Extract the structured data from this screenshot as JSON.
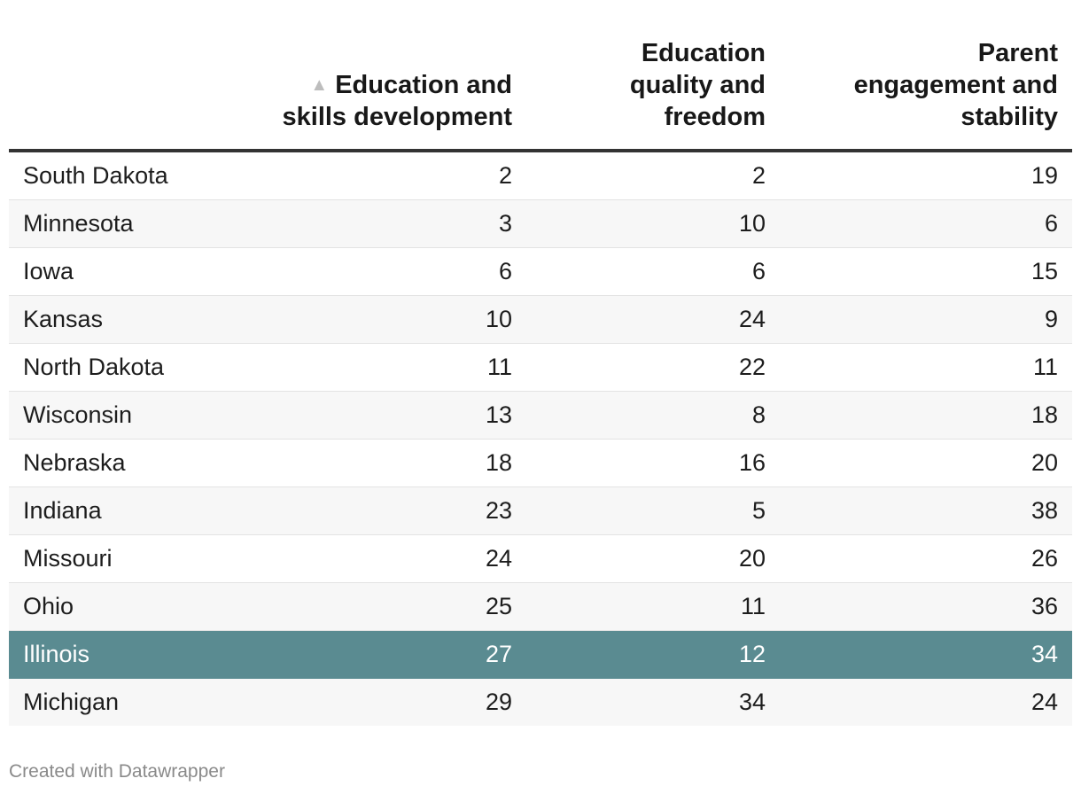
{
  "chart_data": {
    "type": "table",
    "sort": {
      "column": "education_skills",
      "direction": "ascending",
      "icon": "sort-ascending-icon"
    },
    "columns": [
      {
        "key": "state",
        "label": ""
      },
      {
        "key": "education_skills",
        "label_lines": [
          "Education and",
          "skills development"
        ]
      },
      {
        "key": "education_quality",
        "label_lines": [
          "Education",
          "quality and",
          "freedom"
        ]
      },
      {
        "key": "parent_engagement",
        "label_lines": [
          "Parent",
          "engagement and",
          "stability"
        ]
      }
    ],
    "rows": [
      {
        "state": "South Dakota",
        "education_skills": 2,
        "education_quality": 2,
        "parent_engagement": 19
      },
      {
        "state": "Minnesota",
        "education_skills": 3,
        "education_quality": 10,
        "parent_engagement": 6
      },
      {
        "state": "Iowa",
        "education_skills": 6,
        "education_quality": 6,
        "parent_engagement": 15
      },
      {
        "state": "Kansas",
        "education_skills": 10,
        "education_quality": 24,
        "parent_engagement": 9
      },
      {
        "state": "North Dakota",
        "education_skills": 11,
        "education_quality": 22,
        "parent_engagement": 11
      },
      {
        "state": "Wisconsin",
        "education_skills": 13,
        "education_quality": 8,
        "parent_engagement": 18
      },
      {
        "state": "Nebraska",
        "education_skills": 18,
        "education_quality": 16,
        "parent_engagement": 20
      },
      {
        "state": "Indiana",
        "education_skills": 23,
        "education_quality": 5,
        "parent_engagement": 38
      },
      {
        "state": "Missouri",
        "education_skills": 24,
        "education_quality": 20,
        "parent_engagement": 26
      },
      {
        "state": "Ohio",
        "education_skills": 25,
        "education_quality": 11,
        "parent_engagement": 36
      },
      {
        "state": "Illinois",
        "education_skills": 27,
        "education_quality": 12,
        "parent_engagement": 34,
        "highlight": true
      },
      {
        "state": "Michigan",
        "education_skills": 29,
        "education_quality": 34,
        "parent_engagement": 24
      }
    ],
    "highlight_color": "#5a8b91"
  },
  "footer": {
    "credit": "Created with Datawrapper"
  }
}
